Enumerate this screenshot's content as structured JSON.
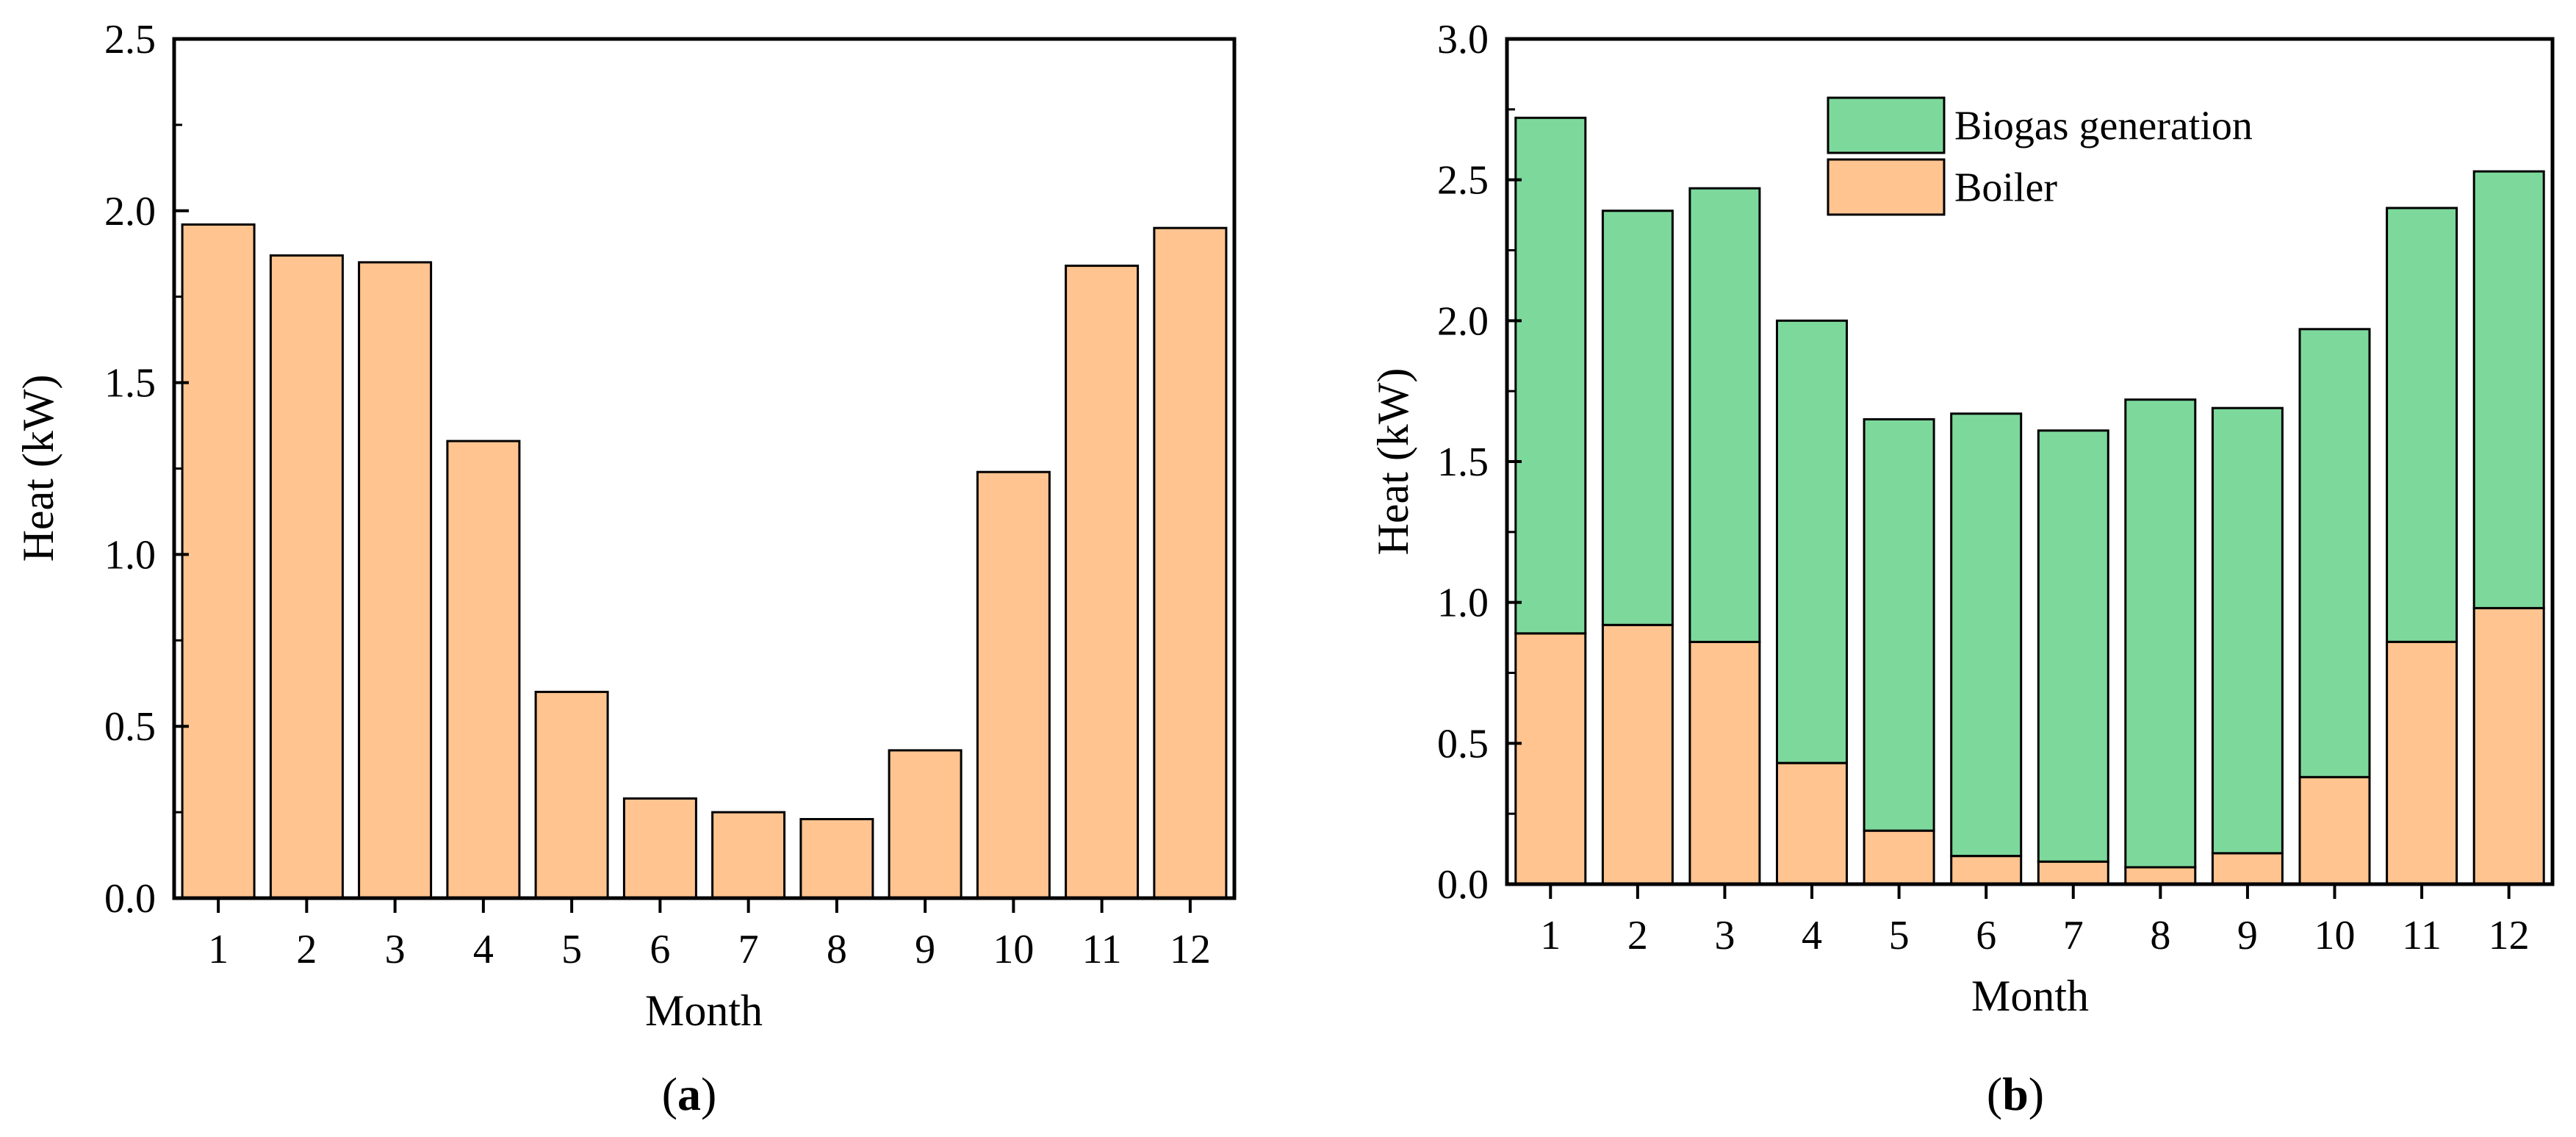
{
  "chart_data": [
    {
      "type": "bar",
      "panel_label": "a",
      "categories": [
        "1",
        "2",
        "3",
        "4",
        "5",
        "6",
        "7",
        "8",
        "9",
        "10",
        "11",
        "12"
      ],
      "series": [
        {
          "name": "Boiler",
          "color": "#FFC48F",
          "values": [
            1.96,
            1.87,
            1.85,
            1.33,
            0.6,
            0.29,
            0.25,
            0.23,
            0.43,
            1.24,
            1.84,
            1.95
          ]
        }
      ],
      "xlabel": "Month",
      "ylabel": "Heat (kW)",
      "ylim": [
        0,
        2.5
      ],
      "yticks": [
        "0.0",
        "0.5",
        "1.0",
        "1.5",
        "2.0",
        "2.5"
      ],
      "grid": false
    },
    {
      "type": "bar",
      "stacked": true,
      "panel_label": "b",
      "categories": [
        "1",
        "2",
        "3",
        "4",
        "5",
        "6",
        "7",
        "8",
        "9",
        "10",
        "11",
        "12"
      ],
      "series": [
        {
          "name": "Boiler",
          "color": "#FFC48F",
          "values": [
            0.89,
            0.92,
            0.86,
            0.43,
            0.19,
            0.1,
            0.08,
            0.06,
            0.11,
            0.38,
            0.86,
            0.98
          ]
        },
        {
          "name": "Biogas generation",
          "color": "#7DD89C",
          "values": [
            1.83,
            1.47,
            1.61,
            1.57,
            1.46,
            1.57,
            1.53,
            1.66,
            1.58,
            1.59,
            1.54,
            1.55
          ]
        }
      ],
      "legend_order": [
        "Biogas generation",
        "Boiler"
      ],
      "legend_position": "top-center",
      "xlabel": "Month",
      "ylabel": "Heat (kW)",
      "ylim": [
        0,
        3.0
      ],
      "yticks": [
        "0.0",
        "0.5",
        "1.0",
        "1.5",
        "2.0",
        "2.5",
        "3.0"
      ],
      "grid": false
    }
  ]
}
